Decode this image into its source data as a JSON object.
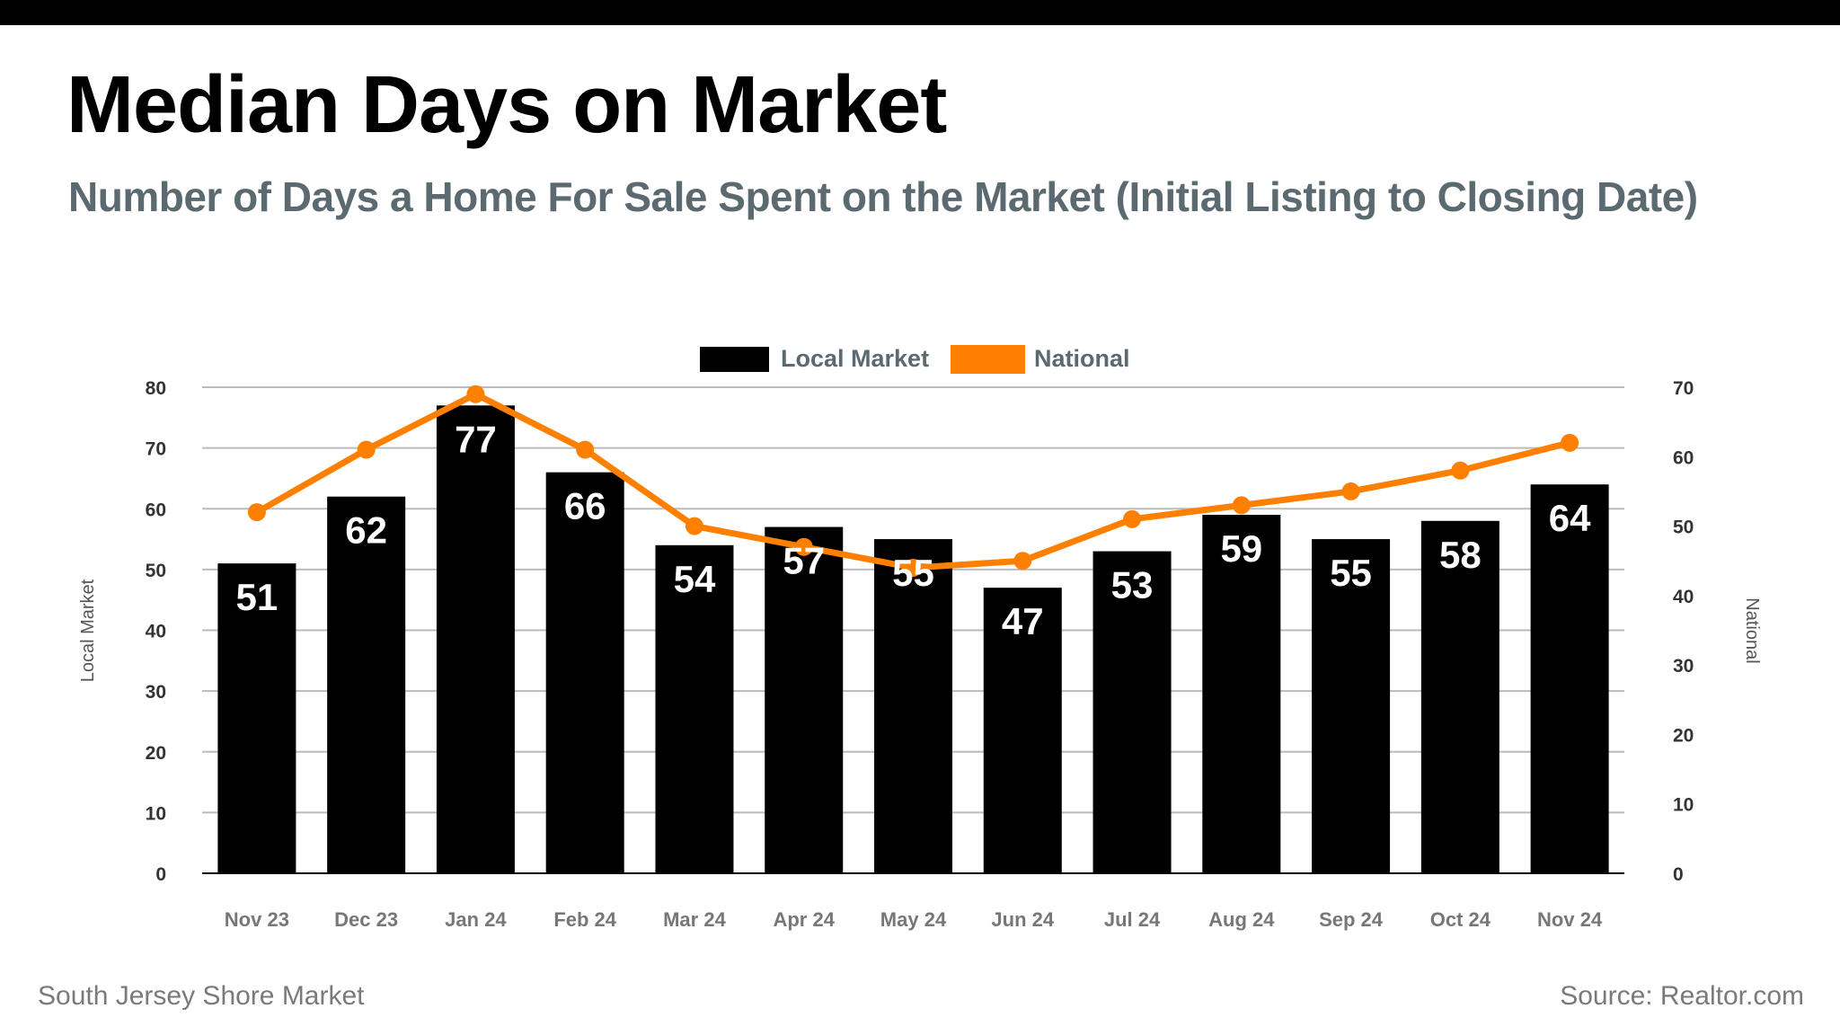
{
  "title": "Median Days on Market",
  "subtitle": "Number of Days a Home For Sale Spent on the Market (Initial Listing to Closing Date)",
  "footer": {
    "left": "South Jersey Shore Market",
    "right": "Source: Realtor.com"
  },
  "colors": {
    "local": "#000000",
    "national": "#ff8000",
    "grid": "#bbbbbb"
  },
  "chart_data": {
    "type": "bar",
    "categories": [
      "Nov 23",
      "Dec 23",
      "Jan 24",
      "Feb 24",
      "Mar 24",
      "Apr 24",
      "May 24",
      "Jun 24",
      "Jul 24",
      "Aug 24",
      "Sep 24",
      "Oct 24",
      "Nov 24"
    ],
    "highlighted_category": "Apr 24",
    "series": [
      {
        "name": "Local Market",
        "type": "bar",
        "axis": "left",
        "values": [
          51,
          62,
          77,
          66,
          54,
          57,
          55,
          47,
          53,
          59,
          55,
          58,
          64
        ]
      },
      {
        "name": "National",
        "type": "line",
        "axis": "right",
        "values": [
          52,
          61,
          69,
          61,
          50,
          47,
          44,
          45,
          51,
          53,
          55,
          58,
          62
        ]
      }
    ],
    "ylabel": "Local Market",
    "y2label": "National",
    "ylim": [
      0,
      80
    ],
    "y2lim": [
      0,
      70
    ],
    "yticks": [
      0,
      10,
      20,
      30,
      40,
      50,
      60,
      70,
      80
    ],
    "y2ticks": [
      0,
      10,
      20,
      30,
      40,
      50,
      60,
      70
    ],
    "grid": true,
    "legend": "top-center"
  }
}
